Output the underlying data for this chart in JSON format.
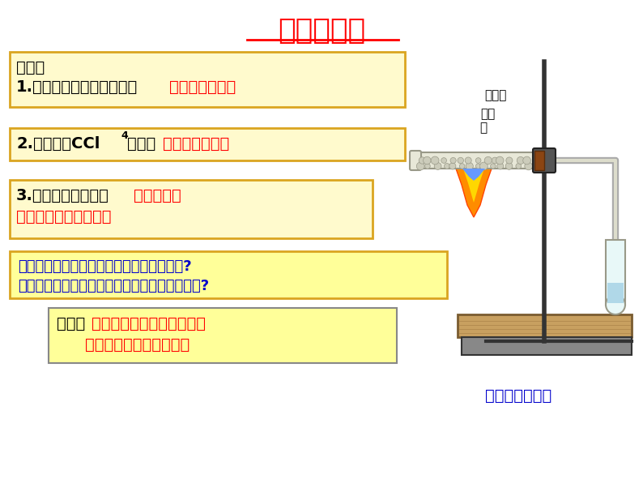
{
  "title": "工业制乙烯",
  "title_color": "#FF0000",
  "title_fontsize": 26,
  "bg_color": "#FFFFFF",
  "box1_line1": "现象：",
  "box1_line2_black": "1.通入酸性高锰酸钾溶液，",
  "box1_line2_red": "紫红色溶液褪色",
  "box2_black1": "2.通入溴的CCl",
  "box2_sub": "4",
  "box2_black2": "溶液，",
  "box2_red": "橙红色溶液褪色",
  "box3_line1_black": "3.点燃收集的气体，",
  "box3_line1_red": "气体燃烧，",
  "box3_line2_red": "火焰明亮并伴有黑烟。",
  "box4_line1": "哪些现象证明生成物具有与烷烃相同的性质?",
  "box4_line2": "哪些现象证明生成物可能具有不同于烷烃的性质?",
  "box5_black": "推测：",
  "box5_red1": "生成的气体中不都是烷烃，",
  "box5_red2": "应该有其他类型的物质。",
  "label_suici": "碎瓷片",
  "label_shila": "石蜡",
  "label_mian": "棉",
  "label_bottom": "石蜡油分解实验",
  "box_bg_yellow": "#FFFACD",
  "box_border_gold": "#DAA520",
  "box4_bg": "#FFFF99",
  "text_black": "#000000",
  "text_red": "#FF0000",
  "text_blue": "#0000CC"
}
